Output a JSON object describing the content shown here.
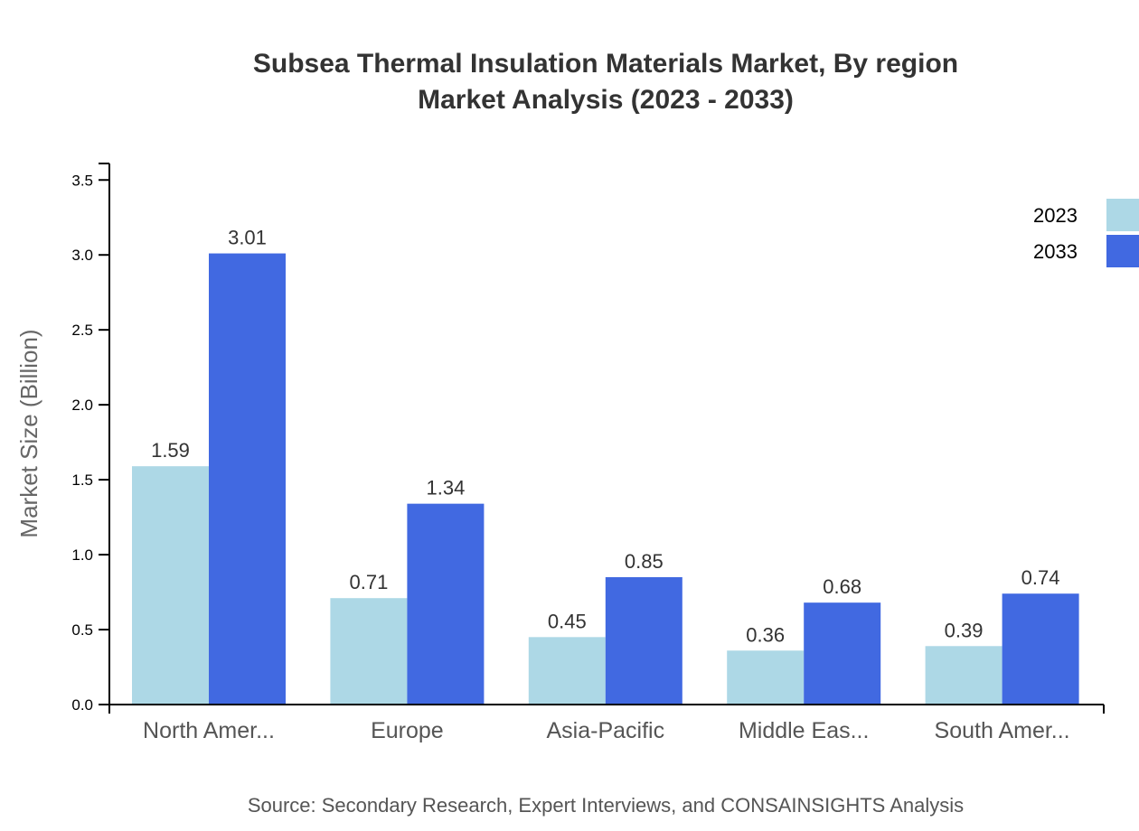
{
  "chart_data": {
    "type": "bar",
    "title": "Subsea Thermal Insulation Materials Market, By region",
    "subtitle": "Market Analysis (2023 - 2033)",
    "xlabel": "",
    "ylabel": "Market Size (Billion)",
    "categories": [
      "North Amer...",
      "Europe",
      "Asia-Pacific",
      "Middle Eas...",
      "South Amer..."
    ],
    "series": [
      {
        "name": "2023",
        "color": "#add8e6",
        "values": [
          1.59,
          0.71,
          0.45,
          0.36,
          0.39
        ]
      },
      {
        "name": "2033",
        "color": "#4169e1",
        "values": [
          3.01,
          1.34,
          0.85,
          0.68,
          0.74
        ]
      }
    ],
    "ylim": [
      0,
      3.61
    ],
    "yticks": [
      "0.0",
      "0.5",
      "1.0",
      "1.5",
      "2.0",
      "2.5",
      "3.0",
      "3.5"
    ],
    "grid": false,
    "legend_position": "top-right",
    "source": "Source: Secondary Research, Expert Interviews, and CONSAINSIGHTS Analysis"
  }
}
